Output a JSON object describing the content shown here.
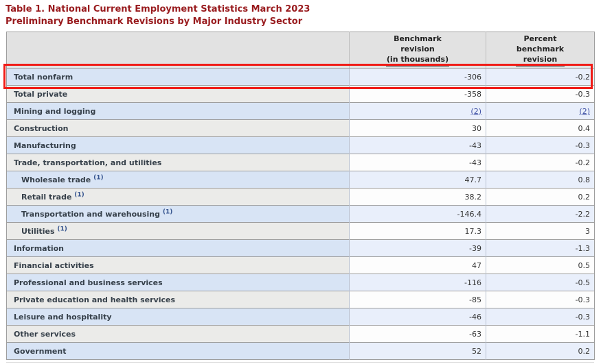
{
  "page": {
    "title_line1": "Table 1. National Current Employment Statistics March 2023",
    "title_line2": "Preliminary Benchmark Revisions by Major Industry Sector"
  },
  "colors": {
    "title_text": "#991b1e",
    "highlight_box": "#f01c17",
    "link": "#3f51a5",
    "row_blue_label": "#d8e4f5",
    "row_blue_value": "#e9effb",
    "row_gray_label": "#ebebe9",
    "row_gray_value": "#fdfdfd",
    "header_bg": "#e2e2e2"
  },
  "table": {
    "columns": [
      {
        "id": "industry",
        "lines": [
          "",
          "",
          ""
        ]
      },
      {
        "id": "benchmark_revision",
        "lines": [
          "Benchmark",
          "revision",
          "(in thousands)"
        ]
      },
      {
        "id": "percent_benchmark_revision",
        "lines": [
          "Percent",
          "benchmark",
          "revision"
        ]
      }
    ],
    "rows": [
      {
        "label": "Total nonfarm",
        "indent": 0,
        "benchmark": "-306",
        "percent": "-0.2",
        "highlighted": true
      },
      {
        "label": "Total private",
        "indent": 0,
        "benchmark": "-358",
        "percent": "-0.3"
      },
      {
        "label": "Mining and logging",
        "indent": 0,
        "benchmark": "(2)",
        "percent": "(2)",
        "benchmark_is_link": true,
        "percent_is_link": true
      },
      {
        "label": "Construction",
        "indent": 0,
        "benchmark": "30",
        "percent": "0.4"
      },
      {
        "label": "Manufacturing",
        "indent": 0,
        "benchmark": "-43",
        "percent": "-0.3"
      },
      {
        "label": "Trade, transportation, and utilities",
        "indent": 0,
        "benchmark": "-43",
        "percent": "-0.2"
      },
      {
        "label": "Wholesale trade",
        "footnote": "(1)",
        "indent": 1,
        "benchmark": "47.7",
        "percent": "0.8"
      },
      {
        "label": "Retail trade",
        "footnote": "(1)",
        "indent": 1,
        "benchmark": "38.2",
        "percent": "0.2"
      },
      {
        "label": "Transportation and warehousing",
        "footnote": "(1)",
        "indent": 1,
        "benchmark": "-146.4",
        "percent": "-2.2"
      },
      {
        "label": "Utilities",
        "footnote": "(1)",
        "indent": 1,
        "benchmark": "17.3",
        "percent": "3"
      },
      {
        "label": "Information",
        "indent": 0,
        "benchmark": "-39",
        "percent": "-1.3"
      },
      {
        "label": "Financial activities",
        "indent": 0,
        "benchmark": "47",
        "percent": "0.5"
      },
      {
        "label": "Professional and business services",
        "indent": 0,
        "benchmark": "-116",
        "percent": "-0.5"
      },
      {
        "label": "Private education and health services",
        "indent": 0,
        "benchmark": "-85",
        "percent": "-0.3"
      },
      {
        "label": "Leisure and hospitality",
        "indent": 0,
        "benchmark": "-46",
        "percent": "-0.3"
      },
      {
        "label": "Other services",
        "indent": 0,
        "benchmark": "-63",
        "percent": "-1.1"
      },
      {
        "label": "Government",
        "indent": 0,
        "benchmark": "52",
        "percent": "0.2"
      }
    ],
    "highlight": {
      "row_label": "Total nonfarm"
    }
  }
}
